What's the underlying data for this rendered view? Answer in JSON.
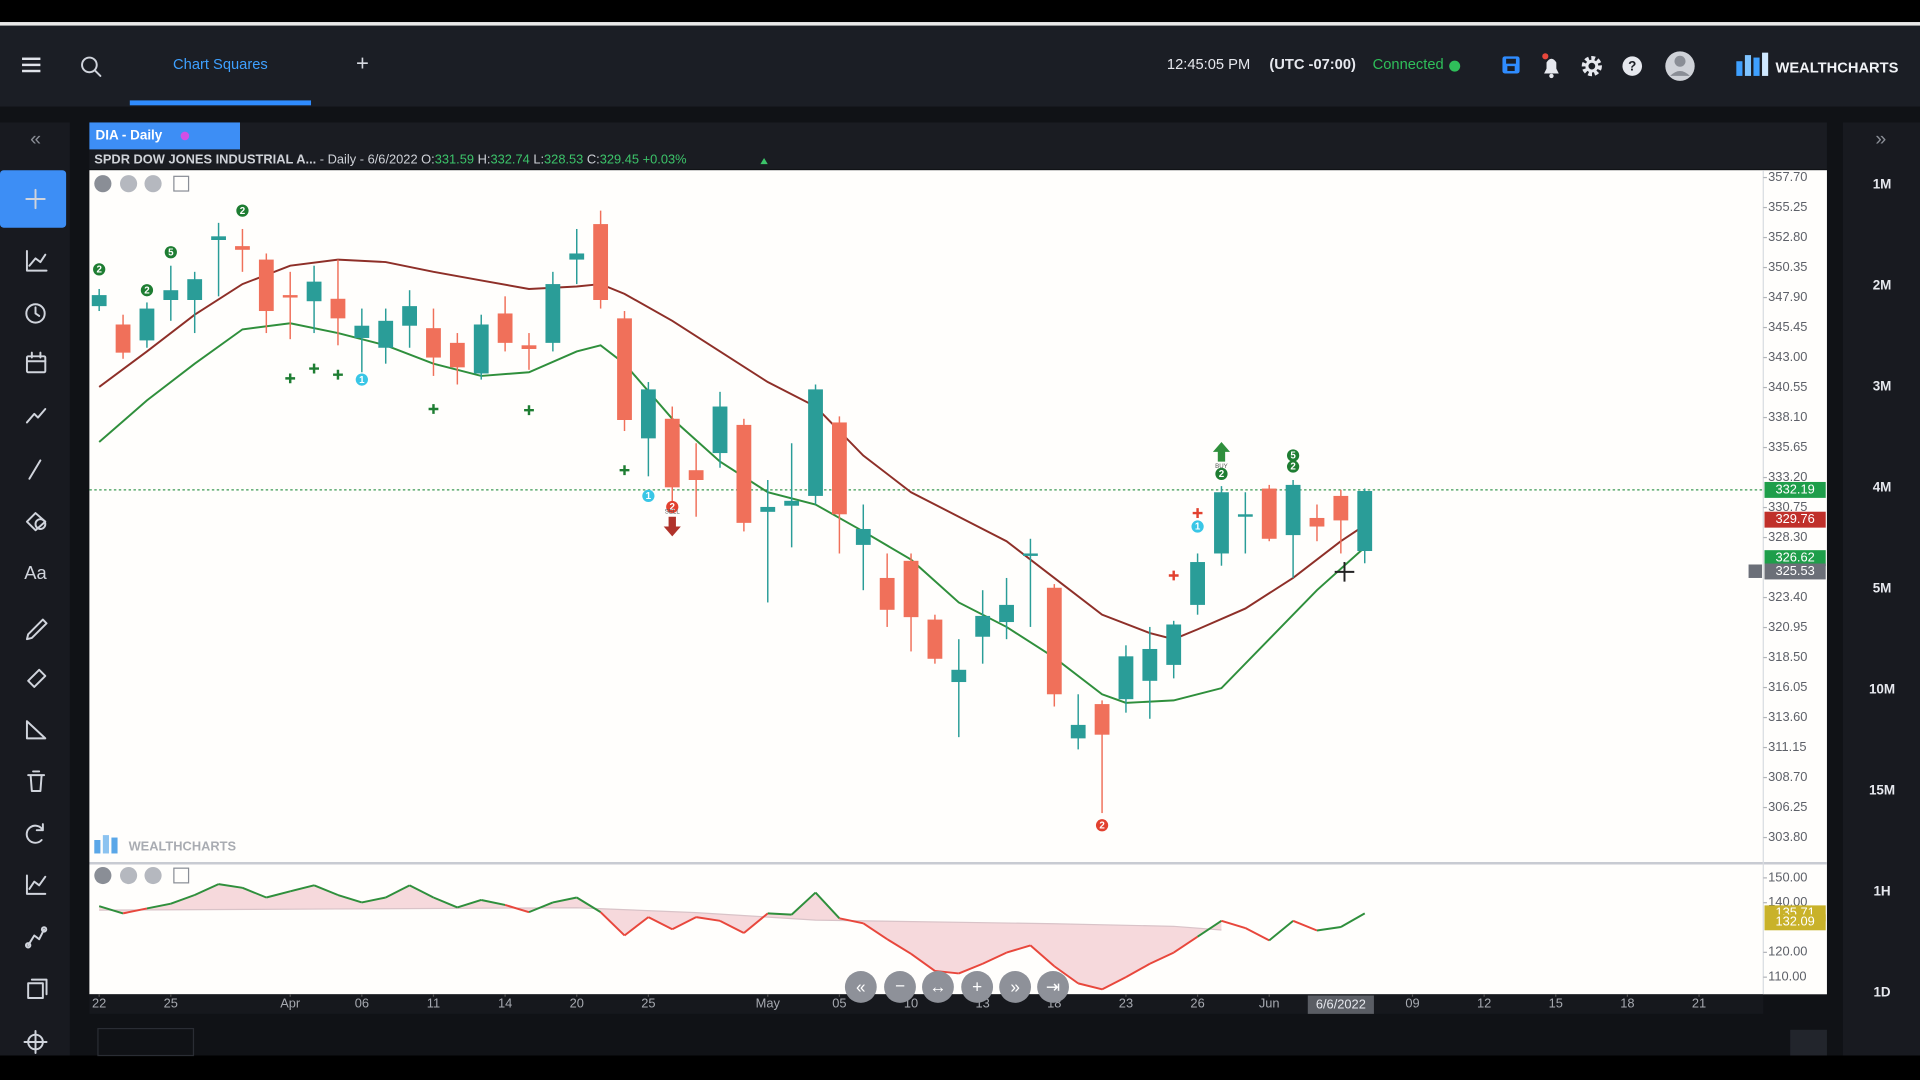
{
  "header": {
    "tab": "Chart Squares",
    "add_tab": "+",
    "time": "12:45:05 PM",
    "timezone": "(UTC -07:00)",
    "status": "Connected",
    "brand": "WEALTHCHARTS"
  },
  "chart_tab": "DIA - Daily",
  "info": {
    "symbol": "SPDR DOW JONES INDUSTRIAL A...",
    "period": " - Daily - 6/6/2022",
    "open_label": " O:",
    "open": "331.59",
    "high_label": " H:",
    "high": "332.74",
    "low_label": " L:",
    "low": "328.53",
    "close_label": " C:",
    "close": "329.45",
    "change": " +0.03%"
  },
  "watermark": "WEALTHCHARTS",
  "timeframes": [
    "1M",
    "2M",
    "3M",
    "4M",
    "5M",
    "10M",
    "15M",
    "1H",
    "1D"
  ],
  "chart_data": {
    "type": "candlestick",
    "up_color": "#2a9d98",
    "down_color": "#f0705a",
    "xlim": [
      -0.41,
      69.69
    ],
    "xticks": [
      {
        "value": 0,
        "label": "22"
      },
      {
        "value": 3,
        "label": "25"
      },
      {
        "value": 8,
        "label": "Apr"
      },
      {
        "value": 11,
        "label": "06"
      },
      {
        "value": 14,
        "label": "11"
      },
      {
        "value": 17,
        "label": "14"
      },
      {
        "value": 20,
        "label": "20"
      },
      {
        "value": 23,
        "label": "25"
      },
      {
        "value": 28,
        "label": "May"
      },
      {
        "value": 31,
        "label": "05"
      },
      {
        "value": 34,
        "label": "10"
      },
      {
        "value": 37,
        "label": "13"
      },
      {
        "value": 40,
        "label": "18"
      },
      {
        "value": 43,
        "label": "23"
      },
      {
        "value": 46,
        "label": "26"
      },
      {
        "value": 49,
        "label": "Jun"
      },
      {
        "value": 55,
        "label": "09"
      },
      {
        "value": 58,
        "label": "12"
      },
      {
        "value": 61,
        "label": "15"
      },
      {
        "value": 64,
        "label": "18"
      },
      {
        "value": 67,
        "label": "21"
      }
    ],
    "cursor_date": {
      "value": 52,
      "label": "6/6/2022"
    },
    "ylim": [
      301.8,
      358.3
    ],
    "yticks": [
      {
        "value": 357.7,
        "label": "357.70"
      },
      355.25,
      {
        "value": 352.8,
        "label": "352.80"
      },
      350.35,
      {
        "value": 347.9,
        "label": "347.90"
      },
      345.45,
      {
        "value": 343,
        "label": "343.00"
      },
      340.55,
      {
        "value": 338.1,
        "label": "338.10"
      },
      335.65,
      {
        "value": 333.2,
        "label": "333.20"
      },
      330.75,
      {
        "value": 328.3,
        "label": "328.30"
      },
      {
        "value": 323.4,
        "label": "323.40"
      },
      320.95,
      {
        "value": 318.5,
        "label": "318.50"
      },
      316.05,
      {
        "value": 313.6,
        "label": "313.60"
      },
      311.15,
      {
        "value": 308.7,
        "label": "308.70"
      },
      306.25,
      {
        "value": 303.8,
        "label": "303.80"
      }
    ],
    "open": [
      347.2,
      345.7,
      344.4,
      347.7,
      347.7,
      352.6,
      352.1,
      351.0,
      348.1,
      347.6,
      347.8,
      344.6,
      343.8,
      345.6,
      345.4,
      344.2,
      341.7,
      346.6,
      344.0,
      344.2,
      351.0,
      353.9,
      346.2,
      336.4,
      338.0,
      333.8,
      335.2,
      337.5,
      330.4,
      330.9,
      331.7,
      337.7,
      327.7,
      325.0,
      326.4,
      321.6,
      316.5,
      320.2,
      321.4,
      326.8,
      324.2,
      311.9,
      314.7,
      315.1,
      316.6,
      317.9,
      322.8,
      327.0,
      330.0,
      332.3,
      328.5,
      329.9,
      331.7,
      327.2
    ],
    "high": [
      348.6,
      346.5,
      347.5,
      350.5,
      350.0,
      354.0,
      353.5,
      351.5,
      350.0,
      350.5,
      351.0,
      347.0,
      347.0,
      348.5,
      347.0,
      345.0,
      346.5,
      348.0,
      345.0,
      350.0,
      353.5,
      355.0,
      346.8,
      341.0,
      339.0,
      336.0,
      340.2,
      338.0,
      333.0,
      336.0,
      340.8,
      338.2,
      331.0,
      327.0,
      327.0,
      322.0,
      320.0,
      324.0,
      325.0,
      328.2,
      324.5,
      315.5,
      315.0,
      319.5,
      321.0,
      321.5,
      327.0,
      332.5,
      332.0,
      332.6,
      333.0,
      331.0,
      332.2,
      332.3
    ],
    "low": [
      346.8,
      342.9,
      343.8,
      346.0,
      345.0,
      348.0,
      350.0,
      345.0,
      344.5,
      345.0,
      344.0,
      341.8,
      342.5,
      343.8,
      341.5,
      340.8,
      341.2,
      343.5,
      342.0,
      343.5,
      349.0,
      347.0,
      337.0,
      333.3,
      331.0,
      330.0,
      334.0,
      328.8,
      323.0,
      327.5,
      331.0,
      327.0,
      324.0,
      321.0,
      319.0,
      318.0,
      312.0,
      318.0,
      320.0,
      321.0,
      314.5,
      311.0,
      305.8,
      314.0,
      313.5,
      316.8,
      322.0,
      326.0,
      327.0,
      328.0,
      325.0,
      328.0,
      327.0,
      326.2
    ],
    "close": [
      348.1,
      343.4,
      347.0,
      348.5,
      349.4,
      352.9,
      351.8,
      346.8,
      347.9,
      349.2,
      346.2,
      345.6,
      346.0,
      347.2,
      343.0,
      342.2,
      345.7,
      344.2,
      343.7,
      349.0,
      351.5,
      347.7,
      337.9,
      340.4,
      332.4,
      333.0,
      339.0,
      329.5,
      330.8,
      331.3,
      340.4,
      330.2,
      329.0,
      322.4,
      321.8,
      318.4,
      317.5,
      321.9,
      322.8,
      327.0,
      315.5,
      313.0,
      312.2,
      318.6,
      319.2,
      321.2,
      326.3,
      332.0,
      330.2,
      328.2,
      332.6,
      329.2,
      329.7,
      332.1
    ],
    "overlays": [
      {
        "color": "#8e2f28",
        "x": [
          0,
          2,
          4,
          6,
          8,
          10,
          12,
          14,
          16,
          18,
          20,
          21,
          22,
          24,
          26,
          28,
          30,
          32,
          34,
          36,
          38,
          40,
          42,
          44,
          45,
          46,
          48,
          50,
          52,
          53
        ],
        "values": [
          340.6,
          343.5,
          346.5,
          349,
          350.5,
          351,
          350.8,
          350,
          349.3,
          348.6,
          348.8,
          349,
          348.2,
          346,
          343.5,
          341,
          339,
          335,
          332,
          330,
          328,
          325,
          322,
          320.5,
          320,
          320.8,
          322.5,
          325,
          328,
          329.3
        ]
      },
      {
        "color": "#2f8f3c",
        "x": [
          0,
          2,
          4,
          6,
          8,
          10,
          12,
          14,
          16,
          18,
          20,
          21,
          22,
          24,
          26,
          28,
          30,
          32,
          34,
          36,
          38,
          40,
          42,
          43,
          45,
          47,
          49,
          51,
          53
        ],
        "values": [
          336.1,
          339.5,
          342.5,
          345.3,
          345.8,
          345,
          344,
          342.5,
          341.5,
          341.8,
          343.5,
          344,
          342.5,
          338,
          334.5,
          332,
          331,
          328.8,
          326.5,
          323,
          321,
          318.5,
          315.5,
          314.8,
          315,
          316,
          320,
          324,
          327.5
        ]
      }
    ],
    "price_line": 332.19,
    "price_labels": [
      {
        "value": 332.19,
        "color": "#1e9e4a"
      },
      {
        "value": 329.76,
        "color": "#c0302a"
      },
      {
        "value": 326.62,
        "color": "#1e9e4a"
      },
      {
        "value": 325.53,
        "color": "#6b6f78"
      }
    ],
    "markers": [
      {
        "x": 0,
        "y": 350.2,
        "label": "2",
        "color": "#1e7d32"
      },
      {
        "x": 2,
        "y": 348.5,
        "label": "2",
        "color": "#1e7d32"
      },
      {
        "x": 3,
        "y": 351.6,
        "label": "5",
        "color": "#1e7d32"
      },
      {
        "x": 6,
        "y": 355.0,
        "label": "2",
        "color": "#1e7d32"
      },
      {
        "x": 11,
        "y": 341.2,
        "label": "1",
        "color": "#39c6e6"
      },
      {
        "x": 23,
        "y": 331.7,
        "label": "1",
        "color": "#39c6e6"
      },
      {
        "x": 46,
        "y": 329.2,
        "label": "1",
        "color": "#39c6e6"
      },
      {
        "x": 24,
        "y": 330.8,
        "label": "2",
        "color": "#e2412f"
      },
      {
        "x": 42,
        "y": 304.8,
        "label": "2",
        "color": "#e2412f"
      },
      {
        "x": 47,
        "y": 333.5,
        "label": "2",
        "color": "#1e7d32"
      },
      {
        "x": 50,
        "y": 335.0,
        "label": "5",
        "color": "#1e7d32"
      },
      {
        "x": 50,
        "y": 334.1,
        "label": "2",
        "color": "#1e7d32"
      }
    ],
    "plus_marks": [
      {
        "x": 8,
        "y": 341.3,
        "color": "#1e7d32"
      },
      {
        "x": 9,
        "y": 342.1,
        "color": "#1e7d32"
      },
      {
        "x": 10,
        "y": 341.6,
        "color": "#1e7d32"
      },
      {
        "x": 14,
        "y": 338.8,
        "color": "#1e7d32"
      },
      {
        "x": 18,
        "y": 338.7,
        "color": "#1e7d32"
      },
      {
        "x": 22,
        "y": 333.8,
        "color": "#1e7d32"
      },
      {
        "x": 45,
        "y": 325.2,
        "color": "#e2412f"
      },
      {
        "x": 46,
        "y": 330.3,
        "color": "#e2412f"
      }
    ],
    "signals": [
      {
        "x": 24,
        "y": 330.0,
        "label": "SELL",
        "direction": "down",
        "color": "#b0322a"
      },
      {
        "x": 47,
        "y": 334.5,
        "label": "BUY",
        "direction": "up",
        "color": "#2f8f3c"
      }
    ],
    "indicator": {
      "ylim": [
        103.1,
        155.4
      ],
      "yticks": [
        {
          "value": 150,
          "label": "150.00"
        },
        {
          "value": 140,
          "label": "140.00"
        },
        {
          "value": 120,
          "label": "120.00"
        },
        {
          "value": 110,
          "label": "110.00"
        }
      ],
      "up_color": "#2f8f3c",
      "down_color": "#e8473c",
      "values": [
        138.6,
        135.7,
        137.7,
        139.6,
        143.1,
        147.5,
        146.0,
        142.1,
        144.6,
        147.0,
        143.1,
        140.1,
        142.1,
        147.0,
        142.1,
        138.1,
        141.1,
        139.1,
        136.2,
        140.1,
        142.1,
        136.2,
        126.8,
        134.2,
        129.3,
        134.2,
        132.7,
        127.8,
        135.7,
        135.2,
        144.1,
        133.7,
        131.7,
        125.3,
        119.4,
        112.5,
        111.5,
        115.4,
        119.9,
        122.8,
        114.4,
        107.5,
        105.1,
        110.0,
        115.4,
        119.9,
        126.3,
        132.7,
        129.8,
        124.8,
        132.7,
        128.8,
        130.2,
        135.7
      ],
      "signal": {
        "x": [
          0,
          10,
          20,
          25,
          30,
          40,
          45,
          47
        ],
        "values": [
          137,
          137.5,
          138,
          136,
          133,
          131.5,
          130.5,
          129
        ]
      },
      "price_labels": [
        {
          "value": 135.71,
          "color": "#c9b22a"
        },
        {
          "value": 132.09,
          "color": "#c9b22a"
        }
      ]
    }
  }
}
